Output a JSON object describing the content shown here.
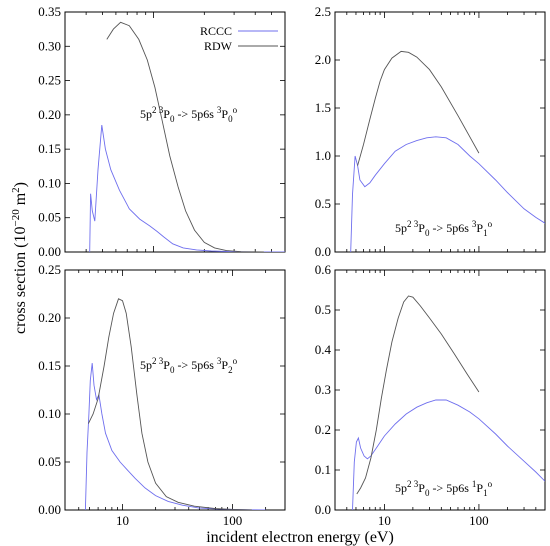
{
  "chart_data": {
    "type": "line",
    "xlabel": "incident electron energy (eV)",
    "ylabel": {
      "prefix": "cross section (10",
      "exp": "−20",
      "mid": " m",
      "exp2": "2",
      "suffix": ")"
    },
    "xscale": "log",
    "legend": {
      "placement": "top-right of upper-left panel",
      "items": [
        {
          "name": "RCCC",
          "color": "#6f6fee"
        },
        {
          "name": "RDW",
          "color": "#555555"
        }
      ]
    },
    "panels": [
      {
        "id": "tl",
        "xlim": [
          3,
          60
        ],
        "ylim": [
          0,
          0.35
        ],
        "yticks": [
          "0.00",
          "0.05",
          "0.10",
          "0.15",
          "0.20",
          "0.25",
          "0.30",
          "0.35"
        ],
        "xticks": [
          {
            "value": 10,
            "label": "10"
          }
        ],
        "label_parts": [
          {
            "text": "5p",
            "sup": false
          },
          {
            "text": "2 3",
            "sup": true
          },
          {
            "text": "P",
            "sup": false
          },
          {
            "text": "0",
            "sub": true
          },
          {
            "text": " -> 5p6s ",
            "sup": false
          },
          {
            "text": "3",
            "sup": true
          },
          {
            "text": "P",
            "sup": false
          },
          {
            "text": "0",
            "sub": true
          },
          {
            "text": "o",
            "sup": true
          }
        ],
        "series": [
          {
            "key": "RCCC",
            "color": "#6f6fee",
            "points": [
              [
                4.2,
                0.0
              ],
              [
                4.25,
                0.085
              ],
              [
                4.35,
                0.06
              ],
              [
                4.5,
                0.045
              ],
              [
                4.7,
                0.12
              ],
              [
                4.95,
                0.185
              ],
              [
                5.2,
                0.15
              ],
              [
                5.6,
                0.12
              ],
              [
                6.3,
                0.09
              ],
              [
                7.2,
                0.063
              ],
              [
                8.3,
                0.048
              ],
              [
                9.5,
                0.038
              ],
              [
                10.5,
                0.03
              ],
              [
                11.5,
                0.022
              ],
              [
                13,
                0.012
              ],
              [
                15,
                0.006
              ],
              [
                18,
                0.003
              ],
              [
                22,
                0.0015
              ],
              [
                30,
                0.0005
              ],
              [
                40,
                0.0002
              ],
              [
                60,
                0.0
              ]
            ]
          },
          {
            "key": "RDW",
            "color": "#555555",
            "points": [
              [
                5.3,
                0.31
              ],
              [
                5.8,
                0.325
              ],
              [
                6.4,
                0.335
              ],
              [
                7.2,
                0.33
              ],
              [
                8.2,
                0.31
              ],
              [
                9.2,
                0.28
              ],
              [
                10.2,
                0.24
              ],
              [
                11.3,
                0.19
              ],
              [
                12.5,
                0.14
              ],
              [
                14,
                0.095
              ],
              [
                15.5,
                0.06
              ],
              [
                17.5,
                0.032
              ],
              [
                20,
                0.014
              ],
              [
                23,
                0.006
              ],
              [
                27,
                0.002
              ],
              [
                33,
                0.0005
              ],
              [
                45,
                0.0
              ]
            ]
          }
        ]
      },
      {
        "id": "tr",
        "xlim": [
          3,
          500
        ],
        "ylim": [
          0,
          2.5
        ],
        "yticks": [
          "0.0",
          "0.5",
          "1.0",
          "1.5",
          "2.0",
          "2.5"
        ],
        "xticks": [
          {
            "value": 10,
            "label": "10"
          },
          {
            "value": 100,
            "label": "100"
          }
        ],
        "label_parts": [
          {
            "text": "5p",
            "sup": false
          },
          {
            "text": "2 3",
            "sup": true
          },
          {
            "text": "P",
            "sup": false
          },
          {
            "text": "0",
            "sub": true
          },
          {
            "text": " -> 5p6s ",
            "sup": false
          },
          {
            "text": "3",
            "sup": true
          },
          {
            "text": "P",
            "sup": false
          },
          {
            "text": "1",
            "sub": true
          },
          {
            "text": "o",
            "sup": true
          }
        ],
        "series": [
          {
            "key": "RCCC",
            "color": "#6f6fee",
            "points": [
              [
                4.4,
                0.0
              ],
              [
                4.6,
                0.6
              ],
              [
                4.9,
                1.0
              ],
              [
                5.2,
                0.9
              ],
              [
                5.5,
                0.75
              ],
              [
                6.2,
                0.68
              ],
              [
                7,
                0.72
              ],
              [
                8,
                0.8
              ],
              [
                10,
                0.92
              ],
              [
                13,
                1.05
              ],
              [
                17,
                1.12
              ],
              [
                22,
                1.16
              ],
              [
                28,
                1.19
              ],
              [
                35,
                1.2
              ],
              [
                45,
                1.19
              ],
              [
                60,
                1.12
              ],
              [
                80,
                1.0
              ],
              [
                100,
                0.92
              ],
              [
                150,
                0.75
              ],
              [
                200,
                0.62
              ],
              [
                300,
                0.45
              ],
              [
                400,
                0.36
              ],
              [
                500,
                0.3
              ]
            ]
          },
          {
            "key": "RDW",
            "color": "#555555",
            "points": [
              [
                5.2,
                0.9
              ],
              [
                6,
                1.12
              ],
              [
                7,
                1.38
              ],
              [
                8,
                1.6
              ],
              [
                9,
                1.78
              ],
              [
                10,
                1.9
              ],
              [
                12,
                2.02
              ],
              [
                15,
                2.09
              ],
              [
                18,
                2.08
              ],
              [
                22,
                2.03
              ],
              [
                30,
                1.9
              ],
              [
                40,
                1.72
              ],
              [
                60,
                1.42
              ],
              [
                80,
                1.2
              ],
              [
                100,
                1.03
              ]
            ]
          }
        ]
      },
      {
        "id": "bl",
        "xlim": [
          3,
          300
        ],
        "ylim": [
          0,
          0.25
        ],
        "yticks": [
          "0.00",
          "0.05",
          "0.10",
          "0.15",
          "0.20",
          "0.25"
        ],
        "xticks": [
          {
            "value": 10,
            "label": "10"
          },
          {
            "value": 100,
            "label": "100"
          }
        ],
        "label_parts": [
          {
            "text": "5p",
            "sup": false
          },
          {
            "text": "2 3",
            "sup": true
          },
          {
            "text": "P",
            "sup": false
          },
          {
            "text": "0",
            "sub": true
          },
          {
            "text": " -> 5p6s ",
            "sup": false
          },
          {
            "text": "3",
            "sup": true
          },
          {
            "text": "P",
            "sup": false
          },
          {
            "text": "2",
            "sub": true
          },
          {
            "text": "o",
            "sup": true
          }
        ],
        "series": [
          {
            "key": "RCCC",
            "color": "#6f6fee",
            "points": [
              [
                4.6,
                0.0
              ],
              [
                4.75,
                0.06
              ],
              [
                4.95,
                0.1
              ],
              [
                5.1,
                0.135
              ],
              [
                5.3,
                0.153
              ],
              [
                5.5,
                0.13
              ],
              [
                5.8,
                0.115
              ],
              [
                6.1,
                0.12
              ],
              [
                6.5,
                0.1
              ],
              [
                7,
                0.08
              ],
              [
                8,
                0.062
              ],
              [
                9.5,
                0.05
              ],
              [
                11,
                0.042
              ],
              [
                13,
                0.033
              ],
              [
                16,
                0.023
              ],
              [
                20,
                0.015
              ],
              [
                26,
                0.009
              ],
              [
                35,
                0.005
              ],
              [
                50,
                0.002
              ],
              [
                80,
                0.0008
              ],
              [
                150,
                0.0002
              ],
              [
                200,
                0.0
              ]
            ]
          },
          {
            "key": "RDW",
            "color": "#555555",
            "points": [
              [
                4.9,
                0.09
              ],
              [
                5.4,
                0.1
              ],
              [
                6,
                0.116
              ],
              [
                6.8,
                0.15
              ],
              [
                7.5,
                0.18
              ],
              [
                8.3,
                0.205
              ],
              [
                9.2,
                0.22
              ],
              [
                10,
                0.218
              ],
              [
                10.8,
                0.205
              ],
              [
                12,
                0.17
              ],
              [
                13.5,
                0.12
              ],
              [
                15,
                0.08
              ],
              [
                17,
                0.05
              ],
              [
                20,
                0.028
              ],
              [
                25,
                0.014
              ],
              [
                32,
                0.008
              ],
              [
                45,
                0.004
              ],
              [
                70,
                0.0015
              ],
              [
                100,
                0.0006
              ],
              [
                150,
                0.0
              ]
            ]
          }
        ]
      },
      {
        "id": "br",
        "xlim": [
          3,
          500
        ],
        "ylim": [
          0,
          0.6
        ],
        "yticks": [
          "0.0",
          "0.1",
          "0.2",
          "0.3",
          "0.4",
          "0.5",
          "0.6"
        ],
        "xticks": [
          {
            "value": 10,
            "label": "10"
          },
          {
            "value": 100,
            "label": "100"
          }
        ],
        "label_parts": [
          {
            "text": "5p",
            "sup": false
          },
          {
            "text": "2 3",
            "sup": true
          },
          {
            "text": "P",
            "sup": false
          },
          {
            "text": "0",
            "sub": true
          },
          {
            "text": " -> 5p6s ",
            "sup": false
          },
          {
            "text": "1",
            "sup": true
          },
          {
            "text": "P",
            "sup": false
          },
          {
            "text": "1",
            "sub": true
          },
          {
            "text": "o",
            "sup": true
          }
        ],
        "series": [
          {
            "key": "RCCC",
            "color": "#6f6fee",
            "points": [
              [
                4.6,
                0.0
              ],
              [
                4.8,
                0.12
              ],
              [
                5.05,
                0.17
              ],
              [
                5.3,
                0.18
              ],
              [
                5.6,
                0.155
              ],
              [
                6.1,
                0.135
              ],
              [
                6.6,
                0.128
              ],
              [
                7.2,
                0.135
              ],
              [
                8.5,
                0.16
              ],
              [
                10,
                0.185
              ],
              [
                13,
                0.215
              ],
              [
                17,
                0.24
              ],
              [
                22,
                0.257
              ],
              [
                28,
                0.268
              ],
              [
                35,
                0.275
              ],
              [
                45,
                0.275
              ],
              [
                60,
                0.262
              ],
              [
                80,
                0.245
              ],
              [
                100,
                0.228
              ],
              [
                150,
                0.19
              ],
              [
                200,
                0.16
              ],
              [
                300,
                0.122
              ],
              [
                400,
                0.095
              ],
              [
                500,
                0.072
              ]
            ]
          },
          {
            "key": "RDW",
            "color": "#555555",
            "points": [
              [
                5.1,
                0.04
              ],
              [
                5.6,
                0.055
              ],
              [
                6.3,
                0.08
              ],
              [
                7.2,
                0.13
              ],
              [
                8.2,
                0.2
              ],
              [
                9.3,
                0.28
              ],
              [
                10.5,
                0.35
              ],
              [
                12,
                0.42
              ],
              [
                14,
                0.48
              ],
              [
                16,
                0.52
              ],
              [
                18,
                0.535
              ],
              [
                20,
                0.532
              ],
              [
                24,
                0.51
              ],
              [
                30,
                0.48
              ],
              [
                40,
                0.44
              ],
              [
                55,
                0.39
              ],
              [
                75,
                0.34
              ],
              [
                100,
                0.295
              ]
            ]
          }
        ]
      }
    ]
  }
}
